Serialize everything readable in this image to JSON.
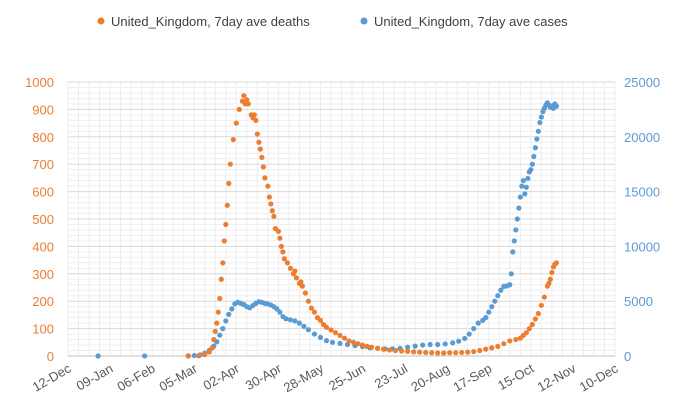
{
  "chart_data": {
    "type": "scatter",
    "title": "",
    "xlabel": "",
    "ylabel": "",
    "x_axis": {
      "type": "date",
      "range": [
        "2019-12-12",
        "2020-12-10"
      ],
      "tick_labels": [
        "12-Dec",
        "09-Jan",
        "06-Feb",
        "05-Mar",
        "02-Apr",
        "30-Apr",
        "28-May",
        "25-Jun",
        "23-Jul",
        "20-Aug",
        "17-Sep",
        "15-Oct",
        "12-Nov",
        "10-Dec"
      ],
      "tick_dates": [
        "2019-12-12",
        "2020-01-09",
        "2020-02-06",
        "2020-03-05",
        "2020-04-02",
        "2020-04-30",
        "2020-05-28",
        "2020-06-25",
        "2020-07-23",
        "2020-08-20",
        "2020-09-17",
        "2020-10-15",
        "2020-11-12",
        "2020-12-10"
      ]
    },
    "y_left": {
      "range": [
        0,
        1000
      ],
      "tick_labels": [
        "0",
        "100",
        "200",
        "300",
        "400",
        "500",
        "600",
        "700",
        "800",
        "900",
        "1000"
      ],
      "color": "#ED7D31"
    },
    "y_right": {
      "range": [
        0,
        25000
      ],
      "tick_labels": [
        "0",
        "5000",
        "10000",
        "15000",
        "20000",
        "25000"
      ],
      "color": "#5B9BD5"
    },
    "grid": true,
    "legend": "top",
    "series": [
      {
        "name": "United_Kingdom, 7day ave deaths",
        "axis": "left",
        "color": "#ED7D31",
        "points": [
          [
            "2020-03-01",
            0
          ],
          [
            "2020-03-08",
            1
          ],
          [
            "2020-03-12",
            5
          ],
          [
            "2020-03-15",
            15
          ],
          [
            "2020-03-17",
            30
          ],
          [
            "2020-03-18",
            60
          ],
          [
            "2020-03-19",
            90
          ],
          [
            "2020-03-20",
            120
          ],
          [
            "2020-03-21",
            160
          ],
          [
            "2020-03-22",
            210
          ],
          [
            "2020-03-23",
            280
          ],
          [
            "2020-03-24",
            340
          ],
          [
            "2020-03-25",
            420
          ],
          [
            "2020-03-26",
            480
          ],
          [
            "2020-03-27",
            550
          ],
          [
            "2020-03-28",
            630
          ],
          [
            "2020-03-29",
            700
          ],
          [
            "2020-03-31",
            790
          ],
          [
            "2020-04-02",
            850
          ],
          [
            "2020-04-04",
            900
          ],
          [
            "2020-04-06",
            930
          ],
          [
            "2020-04-07",
            950
          ],
          [
            "2020-04-08",
            920
          ],
          [
            "2020-04-09",
            935
          ],
          [
            "2020-04-10",
            920
          ],
          [
            "2020-04-12",
            880
          ],
          [
            "2020-04-13",
            870
          ],
          [
            "2020-04-14",
            880
          ],
          [
            "2020-04-15",
            860
          ],
          [
            "2020-04-16",
            810
          ],
          [
            "2020-04-17",
            780
          ],
          [
            "2020-04-18",
            755
          ],
          [
            "2020-04-19",
            725
          ],
          [
            "2020-04-20",
            690
          ],
          [
            "2020-04-21",
            650
          ],
          [
            "2020-04-23",
            620
          ],
          [
            "2020-04-24",
            580
          ],
          [
            "2020-04-25",
            555
          ],
          [
            "2020-04-26",
            530
          ],
          [
            "2020-04-27",
            510
          ],
          [
            "2020-04-28",
            465
          ],
          [
            "2020-04-30",
            455
          ],
          [
            "2020-05-01",
            430
          ],
          [
            "2020-05-02",
            400
          ],
          [
            "2020-05-03",
            380
          ],
          [
            "2020-05-04",
            355
          ],
          [
            "2020-05-06",
            340
          ],
          [
            "2020-05-08",
            320
          ],
          [
            "2020-05-10",
            300
          ],
          [
            "2020-05-11",
            310
          ],
          [
            "2020-05-12",
            285
          ],
          [
            "2020-05-14",
            265
          ],
          [
            "2020-05-15",
            270
          ],
          [
            "2020-05-16",
            255
          ],
          [
            "2020-05-18",
            230
          ],
          [
            "2020-05-20",
            200
          ],
          [
            "2020-05-22",
            175
          ],
          [
            "2020-05-24",
            160
          ],
          [
            "2020-05-26",
            140
          ],
          [
            "2020-05-28",
            130
          ],
          [
            "2020-05-30",
            115
          ],
          [
            "2020-06-01",
            105
          ],
          [
            "2020-06-04",
            95
          ],
          [
            "2020-06-07",
            85
          ],
          [
            "2020-06-10",
            75
          ],
          [
            "2020-06-13",
            65
          ],
          [
            "2020-06-16",
            55
          ],
          [
            "2020-06-19",
            50
          ],
          [
            "2020-06-22",
            45
          ],
          [
            "2020-06-25",
            40
          ],
          [
            "2020-06-28",
            35
          ],
          [
            "2020-07-01",
            32
          ],
          [
            "2020-07-05",
            28
          ],
          [
            "2020-07-09",
            25
          ],
          [
            "2020-07-13",
            22
          ],
          [
            "2020-07-17",
            20
          ],
          [
            "2020-07-21",
            18
          ],
          [
            "2020-07-25",
            17
          ],
          [
            "2020-07-29",
            15
          ],
          [
            "2020-08-02",
            14
          ],
          [
            "2020-08-06",
            13
          ],
          [
            "2020-08-10",
            12
          ],
          [
            "2020-08-14",
            11
          ],
          [
            "2020-08-18",
            11
          ],
          [
            "2020-08-22",
            12
          ],
          [
            "2020-08-26",
            12
          ],
          [
            "2020-08-30",
            13
          ],
          [
            "2020-09-03",
            14
          ],
          [
            "2020-09-07",
            16
          ],
          [
            "2020-09-11",
            20
          ],
          [
            "2020-09-15",
            25
          ],
          [
            "2020-09-19",
            30
          ],
          [
            "2020-09-23",
            35
          ],
          [
            "2020-09-27",
            45
          ],
          [
            "2020-10-01",
            55
          ],
          [
            "2020-10-05",
            60
          ],
          [
            "2020-10-08",
            65
          ],
          [
            "2020-10-10",
            75
          ],
          [
            "2020-10-12",
            85
          ],
          [
            "2020-10-14",
            100
          ],
          [
            "2020-10-16",
            115
          ],
          [
            "2020-10-18",
            135
          ],
          [
            "2020-10-20",
            155
          ],
          [
            "2020-10-22",
            185
          ],
          [
            "2020-10-24",
            215
          ],
          [
            "2020-10-26",
            255
          ],
          [
            "2020-10-27",
            265
          ],
          [
            "2020-10-28",
            280
          ],
          [
            "2020-10-29",
            305
          ],
          [
            "2020-10-30",
            325
          ],
          [
            "2020-10-31",
            335
          ],
          [
            "2020-11-01",
            340
          ]
        ]
      },
      {
        "name": "United_Kingdom, 7day ave cases",
        "axis": "right",
        "color": "#5B9BD5",
        "points": [
          [
            "2020-01-01",
            0
          ],
          [
            "2020-02-01",
            5
          ],
          [
            "2020-03-01",
            20
          ],
          [
            "2020-03-05",
            40
          ],
          [
            "2020-03-09",
            100
          ],
          [
            "2020-03-12",
            250
          ],
          [
            "2020-03-15",
            500
          ],
          [
            "2020-03-18",
            900
          ],
          [
            "2020-03-20",
            1300
          ],
          [
            "2020-03-22",
            1900
          ],
          [
            "2020-03-24",
            2500
          ],
          [
            "2020-03-26",
            3200
          ],
          [
            "2020-03-28",
            3800
          ],
          [
            "2020-03-30",
            4300
          ],
          [
            "2020-04-01",
            4750
          ],
          [
            "2020-04-03",
            4900
          ],
          [
            "2020-04-05",
            4800
          ],
          [
            "2020-04-07",
            4700
          ],
          [
            "2020-04-09",
            4500
          ],
          [
            "2020-04-11",
            4400
          ],
          [
            "2020-04-13",
            4600
          ],
          [
            "2020-04-15",
            4800
          ],
          [
            "2020-04-17",
            4950
          ],
          [
            "2020-04-19",
            4900
          ],
          [
            "2020-04-21",
            4800
          ],
          [
            "2020-04-23",
            4750
          ],
          [
            "2020-04-25",
            4650
          ],
          [
            "2020-04-27",
            4500
          ],
          [
            "2020-04-29",
            4300
          ],
          [
            "2020-05-01",
            4000
          ],
          [
            "2020-05-03",
            3600
          ],
          [
            "2020-05-05",
            3400
          ],
          [
            "2020-05-08",
            3300
          ],
          [
            "2020-05-11",
            3200
          ],
          [
            "2020-05-14",
            3000
          ],
          [
            "2020-05-17",
            2700
          ],
          [
            "2020-05-20",
            2400
          ],
          [
            "2020-05-24",
            2000
          ],
          [
            "2020-05-28",
            1700
          ],
          [
            "2020-06-01",
            1400
          ],
          [
            "2020-06-05",
            1250
          ],
          [
            "2020-06-10",
            1150
          ],
          [
            "2020-06-15",
            1050
          ],
          [
            "2020-06-20",
            950
          ],
          [
            "2020-06-25",
            850
          ],
          [
            "2020-06-30",
            750
          ],
          [
            "2020-07-05",
            700
          ],
          [
            "2020-07-10",
            650
          ],
          [
            "2020-07-15",
            650
          ],
          [
            "2020-07-20",
            700
          ],
          [
            "2020-07-25",
            800
          ],
          [
            "2020-07-30",
            900
          ],
          [
            "2020-08-04",
            1000
          ],
          [
            "2020-08-09",
            1050
          ],
          [
            "2020-08-14",
            1050
          ],
          [
            "2020-08-19",
            1100
          ],
          [
            "2020-08-24",
            1200
          ],
          [
            "2020-08-28",
            1350
          ],
          [
            "2020-09-01",
            1600
          ],
          [
            "2020-09-04",
            2000
          ],
          [
            "2020-09-07",
            2500
          ],
          [
            "2020-09-10",
            3000
          ],
          [
            "2020-09-13",
            3250
          ],
          [
            "2020-09-15",
            3500
          ],
          [
            "2020-09-17",
            4000
          ],
          [
            "2020-09-19",
            4500
          ],
          [
            "2020-09-21",
            5000
          ],
          [
            "2020-09-23",
            5500
          ],
          [
            "2020-09-25",
            6000
          ],
          [
            "2020-09-27",
            6350
          ],
          [
            "2020-09-29",
            6400
          ],
          [
            "2020-10-01",
            6500
          ],
          [
            "2020-10-02",
            7500
          ],
          [
            "2020-10-03",
            9500
          ],
          [
            "2020-10-04",
            10500
          ],
          [
            "2020-10-05",
            11500
          ],
          [
            "2020-10-06",
            12500
          ],
          [
            "2020-10-07",
            13500
          ],
          [
            "2020-10-08",
            14500
          ],
          [
            "2020-10-09",
            15500
          ],
          [
            "2020-10-10",
            16000
          ],
          [
            "2020-10-11",
            14800
          ],
          [
            "2020-10-12",
            15400
          ],
          [
            "2020-10-13",
            16200
          ],
          [
            "2020-10-14",
            16800
          ],
          [
            "2020-10-15",
            17000
          ],
          [
            "2020-10-16",
            17500
          ],
          [
            "2020-10-17",
            18200
          ],
          [
            "2020-10-18",
            19000
          ],
          [
            "2020-10-19",
            19800
          ],
          [
            "2020-10-20",
            20500
          ],
          [
            "2020-10-21",
            21300
          ],
          [
            "2020-10-22",
            21800
          ],
          [
            "2020-10-23",
            22300
          ],
          [
            "2020-10-24",
            22600
          ],
          [
            "2020-10-25",
            22900
          ],
          [
            "2020-10-26",
            23100
          ],
          [
            "2020-10-27",
            22900
          ],
          [
            "2020-10-28",
            22700
          ],
          [
            "2020-10-29",
            22800
          ],
          [
            "2020-10-30",
            22600
          ],
          [
            "2020-10-31",
            23000
          ],
          [
            "2020-11-01",
            22800
          ]
        ]
      }
    ]
  }
}
